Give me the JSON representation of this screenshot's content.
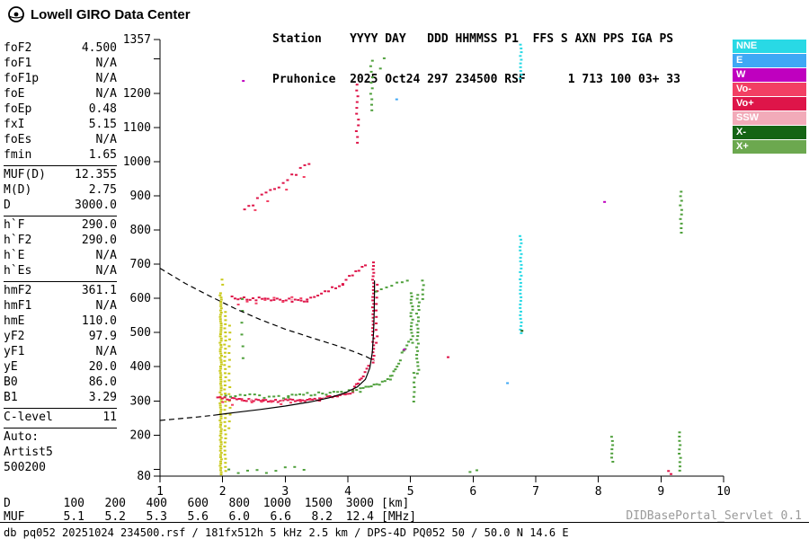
{
  "header": {
    "brand": "Lowell GIRO Data Center",
    "station_line1": "Station    YYYY DAY   DDD HHMMSS P1  FFS S AXN PPS IGA PS",
    "station_line2": "Pruhonice  2025 Oct24 297 234500 RSF      1 713 100 03+ 33"
  },
  "panel": {
    "groups": [
      {
        "rows": [
          {
            "label": "foF2",
            "value": "4.500"
          },
          {
            "label": "foF1",
            "value": "N/A"
          },
          {
            "label": "foF1p",
            "value": "N/A"
          },
          {
            "label": "foE",
            "value": "N/A"
          },
          {
            "label": "foEp",
            "value": "0.48"
          },
          {
            "label": "fxI",
            "value": "5.15"
          },
          {
            "label": "foEs",
            "value": "N/A"
          },
          {
            "label": "fmin",
            "value": "1.65"
          }
        ]
      },
      {
        "rows": [
          {
            "label": "MUF(D)",
            "value": "12.355"
          },
          {
            "label": "M(D)",
            "value": "2.75"
          },
          {
            "label": "D",
            "value": "3000.0"
          }
        ]
      },
      {
        "rows": [
          {
            "label": "h`F",
            "value": "290.0"
          },
          {
            "label": "h`F2",
            "value": "290.0"
          },
          {
            "label": "h`E",
            "value": "N/A"
          },
          {
            "label": "h`Es",
            "value": "N/A"
          }
        ]
      },
      {
        "rows": [
          {
            "label": "hmF2",
            "value": "361.1"
          },
          {
            "label": "hmF1",
            "value": "N/A"
          },
          {
            "label": "hmE",
            "value": "110.0"
          },
          {
            "label": "yF2",
            "value": "97.9"
          },
          {
            "label": "yF1",
            "value": "N/A"
          },
          {
            "label": "yE",
            "value": "20.0"
          },
          {
            "label": "B0",
            "value": "86.0"
          },
          {
            "label": "B1",
            "value": "3.29"
          }
        ]
      },
      {
        "rows": [
          {
            "label": "C-level",
            "value": "11"
          }
        ]
      },
      {
        "rows": [
          {
            "label": "Auto:",
            "value": ""
          },
          {
            "label": "Artist5",
            "value": ""
          },
          {
            "label": "500200",
            "value": ""
          }
        ]
      }
    ]
  },
  "legend": {
    "items": [
      {
        "label": "NNE",
        "color": "#29D9E5"
      },
      {
        "label": "E",
        "color": "#3FA8F5"
      },
      {
        "label": "W",
        "color": "#BF00BF"
      },
      {
        "label": "Vo-",
        "color": "#F23F63"
      },
      {
        "label": "Vo+",
        "color": "#DE1549"
      },
      {
        "label": "SSW",
        "color": "#F2ABB9"
      },
      {
        "label": "X-",
        "color": "#146414"
      },
      {
        "label": "X+",
        "color": "#6CA84F"
      }
    ]
  },
  "bottom": {
    "rows": [
      {
        "label": "D",
        "values": [
          "100",
          "200",
          "400",
          "600",
          "800",
          "1000",
          "1500",
          "3000"
        ],
        "unit": "[km]"
      },
      {
        "label": "MUF",
        "values": [
          "5.1",
          "5.2",
          "5.3",
          "5.6",
          "6.0",
          "6.6",
          "8.2",
          "12.4"
        ],
        "unit": "[MHz]"
      }
    ],
    "status": "db pq052 20251024 234500.rsf / 181fx512h 5 kHz 2.5 km / DPS-4D PQ052 50 / 50.0 N 14.6 E",
    "servlet": "DIDBasePortal_Servlet 0.1"
  },
  "chart_data": {
    "type": "scatter",
    "title": "Pruhonice ionogram 2025 Oct24 234500",
    "xlabel": "[MHz]",
    "ylabel": "[km]",
    "x_axis": {
      "min": 1,
      "max": 10,
      "ticks": [
        {
          "v": 1,
          "l": "1"
        },
        {
          "v": 2,
          "l": "2"
        },
        {
          "v": 3,
          "l": "3"
        },
        {
          "v": 4,
          "l": "4"
        },
        {
          "v": 5,
          "l": "5"
        },
        {
          "v": 6,
          "l": "6"
        },
        {
          "v": 7,
          "l": "7"
        },
        {
          "v": 8,
          "l": "8"
        },
        {
          "v": 9,
          "l": "9"
        },
        {
          "v": 10,
          "l": "10"
        }
      ]
    },
    "y_axis": {
      "min": 80,
      "max": 1357,
      "ticks": [
        {
          "v": 80,
          "l": "80"
        },
        {
          "v": 100,
          "l": ""
        },
        {
          "v": 200,
          "l": "200"
        },
        {
          "v": 300,
          "l": "300"
        },
        {
          "v": 400,
          "l": "400"
        },
        {
          "v": 500,
          "l": "500"
        },
        {
          "v": 600,
          "l": "600"
        },
        {
          "v": 700,
          "l": "700"
        },
        {
          "v": 800,
          "l": "800"
        },
        {
          "v": 900,
          "l": "900"
        },
        {
          "v": 1000,
          "l": "1000"
        },
        {
          "v": 1100,
          "l": "1100"
        },
        {
          "v": 1200,
          "l": "1200"
        },
        {
          "v": 1300,
          "l": ""
        },
        {
          "v": 1357,
          "l": "1357"
        }
      ]
    },
    "series": [
      {
        "name": "interference-noise",
        "color": "#C9C91B",
        "segments": [
          {
            "kind": "col",
            "x": 1.97,
            "h_from": 85,
            "h_to": 615,
            "n": 85,
            "jitter": 0.012
          },
          {
            "kind": "col",
            "x": 2.04,
            "h_from": 95,
            "h_to": 560,
            "n": 40,
            "jitter": 0.01
          },
          {
            "kind": "col",
            "x": 2.11,
            "h_from": 220,
            "h_to": 520,
            "n": 16,
            "jitter": 0.01
          },
          {
            "kind": "pts",
            "points": [
              [
                2.0,
                640
              ],
              [
                1.99,
                655
              ]
            ]
          }
        ]
      },
      {
        "name": "o-mode-vo-plus",
        "color": "#DE1549",
        "segments": [
          {
            "kind": "line",
            "from": [
              1.92,
              308
            ],
            "to": [
              2.65,
              300
            ],
            "n": 20,
            "jitter": 4
          },
          {
            "kind": "line",
            "from": [
              2.65,
              299
            ],
            "to": [
              3.55,
              304
            ],
            "n": 24,
            "jitter": 4
          },
          {
            "kind": "line",
            "from": [
              3.55,
              306
            ],
            "to": [
              4.08,
              326
            ],
            "n": 14,
            "jitter": 4
          },
          {
            "kind": "line",
            "from": [
              4.08,
              330
            ],
            "to": [
              4.33,
              398
            ],
            "n": 10,
            "jitter": 5
          },
          {
            "kind": "col",
            "x": 4.405,
            "h_from": 412,
            "h_to": 705,
            "n": 30,
            "jitter": 0.013
          },
          {
            "kind": "col",
            "x": 4.46,
            "h_from": 470,
            "h_to": 640,
            "n": 10,
            "jitter": 0.01
          },
          {
            "kind": "line",
            "from": [
              2.15,
              602
            ],
            "to": [
              3.35,
              593
            ],
            "n": 26,
            "jitter": 5
          },
          {
            "kind": "line",
            "from": [
              3.35,
              596
            ],
            "to": [
              3.92,
              641
            ],
            "n": 11,
            "jitter": 6
          },
          {
            "kind": "line",
            "from": [
              3.92,
              646
            ],
            "to": [
              4.28,
              700
            ],
            "n": 8,
            "jitter": 6
          },
          {
            "kind": "line",
            "from": [
              2.35,
              862
            ],
            "to": [
              3.38,
              992
            ],
            "n": 16,
            "jitter": 8
          },
          {
            "kind": "col",
            "x": 4.15,
            "h_from": 1055,
            "h_to": 1225,
            "n": 11,
            "jitter": 0.02
          },
          {
            "kind": "pts",
            "points": [
              [
                9.12,
                95
              ],
              [
                9.16,
                86
              ],
              [
                5.6,
                428
              ]
            ]
          }
        ]
      },
      {
        "name": "o-mode-vo-minus",
        "color": "#F23F63",
        "segments": [
          {
            "kind": "line",
            "from": [
              2.0,
              294
            ],
            "to": [
              3.4,
              297
            ],
            "n": 10,
            "jitter": 7
          },
          {
            "kind": "line",
            "from": [
              2.25,
              588
            ],
            "to": [
              3.25,
              600
            ],
            "n": 8,
            "jitter": 7
          },
          {
            "kind": "pts",
            "points": [
              [
                2.52,
                858
              ],
              [
                2.72,
                884
              ],
              [
                3.02,
                918
              ],
              [
                3.3,
                955
              ]
            ]
          }
        ]
      },
      {
        "name": "ssw-echoes",
        "color": "#F2ABB9",
        "segments": [
          {
            "kind": "pts",
            "points": [
              [
                2.45,
                303
              ],
              [
                2.95,
                299
              ],
              [
                3.62,
                309
              ],
              [
                3.1,
                596
              ]
            ]
          }
        ]
      },
      {
        "name": "x-mode-x-plus",
        "color": "#4FA03C",
        "segments": [
          {
            "kind": "line",
            "from": [
              2.05,
              316
            ],
            "to": [
              3.05,
              312
            ],
            "n": 14,
            "jitter": 5
          },
          {
            "kind": "line",
            "from": [
              3.05,
              314
            ],
            "to": [
              4.2,
              331
            ],
            "n": 20,
            "jitter": 5
          },
          {
            "kind": "line",
            "from": [
              4.2,
              333
            ],
            "to": [
              4.68,
              362
            ],
            "n": 12,
            "jitter": 5
          },
          {
            "kind": "line",
            "from": [
              4.68,
              368
            ],
            "to": [
              4.97,
              472
            ],
            "n": 12,
            "jitter": 7
          },
          {
            "kind": "col",
            "x": 5.02,
            "h_from": 470,
            "h_to": 615,
            "n": 16,
            "jitter": 0.018
          },
          {
            "kind": "col",
            "x": 5.12,
            "h_from": 380,
            "h_to": 610,
            "n": 22,
            "jitter": 0.022
          },
          {
            "kind": "col",
            "x": 5.06,
            "h_from": 298,
            "h_to": 382,
            "n": 7,
            "jitter": 0.012
          },
          {
            "kind": "line",
            "from": [
              4.45,
              618
            ],
            "to": [
              4.95,
              655
            ],
            "n": 7,
            "jitter": 7
          },
          {
            "kind": "col",
            "x": 5.2,
            "h_from": 598,
            "h_to": 652,
            "n": 5,
            "jitter": 0.01
          },
          {
            "kind": "col",
            "x": 4.38,
            "h_from": 1150,
            "h_to": 1295,
            "n": 10,
            "jitter": 0.018
          },
          {
            "kind": "pts",
            "points": [
              [
                4.52,
                1272
              ],
              [
                4.58,
                1302
              ]
            ]
          },
          {
            "kind": "col",
            "x": 9.32,
            "h_from": 792,
            "h_to": 912,
            "n": 10,
            "jitter": 0.012
          },
          {
            "kind": "col",
            "x": 9.3,
            "h_from": 96,
            "h_to": 208,
            "n": 10,
            "jitter": 0.012
          },
          {
            "kind": "col",
            "x": 8.22,
            "h_from": 122,
            "h_to": 195,
            "n": 7,
            "jitter": 0.012
          },
          {
            "kind": "line",
            "from": [
              2.1,
              96
            ],
            "to": [
              3.3,
              102
            ],
            "n": 9,
            "jitter": 10
          },
          {
            "kind": "col",
            "x": 2.32,
            "h_from": 425,
            "h_to": 598,
            "n": 6,
            "jitter": 0.015
          },
          {
            "kind": "pts",
            "points": [
              [
                5.95,
                92
              ],
              [
                6.06,
                97
              ]
            ]
          }
        ]
      },
      {
        "name": "nne-echoes",
        "color": "#29D9E5",
        "segments": [
          {
            "kind": "col",
            "x": 6.76,
            "h_from": 498,
            "h_to": 782,
            "n": 28,
            "jitter": 0.011
          },
          {
            "kind": "col",
            "x": 6.76,
            "h_from": 1243,
            "h_to": 1342,
            "n": 10,
            "jitter": 0.011
          }
        ]
      },
      {
        "name": "e-echoes",
        "color": "#3FA8F5",
        "segments": [
          {
            "kind": "pts",
            "points": [
              [
                6.55,
                352
              ],
              [
                4.78,
                1182
              ]
            ]
          }
        ]
      },
      {
        "name": "w-echoes",
        "color": "#BF00BF",
        "segments": [
          {
            "kind": "pts",
            "points": [
              [
                2.33,
                1236
              ],
              [
                4.9,
                450
              ],
              [
                8.1,
                882
              ]
            ]
          }
        ]
      },
      {
        "name": "x-mode-x-minus",
        "color": "#146414",
        "segments": [
          {
            "kind": "pts",
            "points": [
              [
                6.78,
                505
              ]
            ]
          }
        ]
      }
    ],
    "curves": [
      {
        "name": "fitted-trace",
        "style": "solid",
        "points": [
          [
            1.85,
            258
          ],
          [
            2.2,
            266
          ],
          [
            2.6,
            275
          ],
          [
            3.0,
            285
          ],
          [
            3.4,
            297
          ],
          [
            3.7,
            309
          ],
          [
            3.95,
            323
          ],
          [
            4.15,
            341
          ],
          [
            4.28,
            363
          ],
          [
            4.35,
            396
          ],
          [
            4.39,
            442
          ],
          [
            4.41,
            502
          ],
          [
            4.42,
            562
          ],
          [
            4.425,
            620
          ],
          [
            4.425,
            652
          ]
        ]
      },
      {
        "name": "extrapolated-upper",
        "style": "dashed",
        "points": [
          [
            1.0,
            688
          ],
          [
            1.4,
            644
          ],
          [
            1.8,
            606
          ],
          [
            2.2,
            570
          ],
          [
            2.6,
            538
          ],
          [
            3.0,
            510
          ],
          [
            3.4,
            486
          ],
          [
            3.8,
            463
          ],
          [
            4.1,
            444
          ],
          [
            4.3,
            429
          ],
          [
            4.42,
            417
          ]
        ]
      },
      {
        "name": "extrapolated-lower",
        "style": "dashed",
        "points": [
          [
            1.0,
            243
          ],
          [
            1.3,
            248
          ],
          [
            1.6,
            253
          ],
          [
            1.85,
            258
          ]
        ]
      }
    ]
  }
}
